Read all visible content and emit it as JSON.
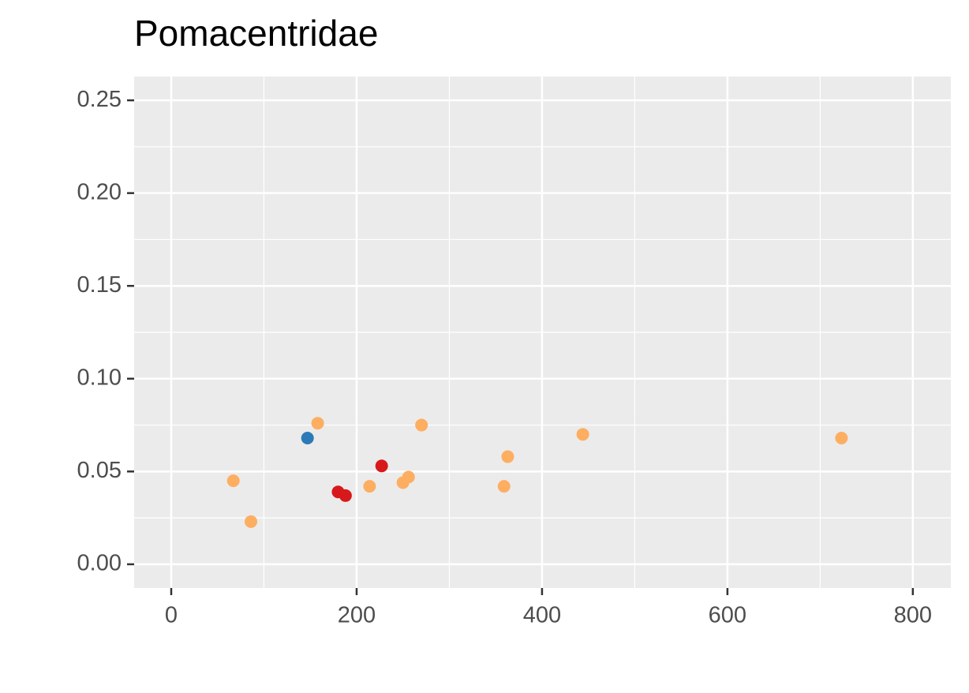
{
  "chart_data": {
    "type": "scatter",
    "title": "Pomacentridae",
    "series": [
      {
        "color": "#fdae61",
        "x": [
          67,
          86,
          158,
          214,
          250,
          256,
          270,
          359,
          363,
          444,
          723
        ],
        "y": [
          0.045,
          0.023,
          0.076,
          0.042,
          0.044,
          0.047,
          0.075,
          0.042,
          0.058,
          0.07,
          0.068
        ]
      },
      {
        "color": "#d7191c",
        "x": [
          180,
          188,
          227
        ],
        "y": [
          0.039,
          0.037,
          0.053
        ]
      },
      {
        "color": "#2c7bb6",
        "x": [
          147
        ],
        "y": [
          0.068
        ]
      }
    ],
    "xlim": [
      -40,
      841
    ],
    "ylim": [
      -0.0128,
      0.2628
    ],
    "xticks": [
      0,
      200,
      400,
      600,
      800
    ],
    "yticks": [
      {
        "value": 0,
        "label": "0.00"
      },
      {
        "value": 0.05,
        "label": "0.05"
      },
      {
        "value": 0.1,
        "label": "0.10"
      },
      {
        "value": 0.15,
        "label": "0.15"
      },
      {
        "value": 0.2,
        "label": "0.20"
      },
      {
        "value": 0.25,
        "label": "0.25"
      }
    ],
    "grid": true
  }
}
